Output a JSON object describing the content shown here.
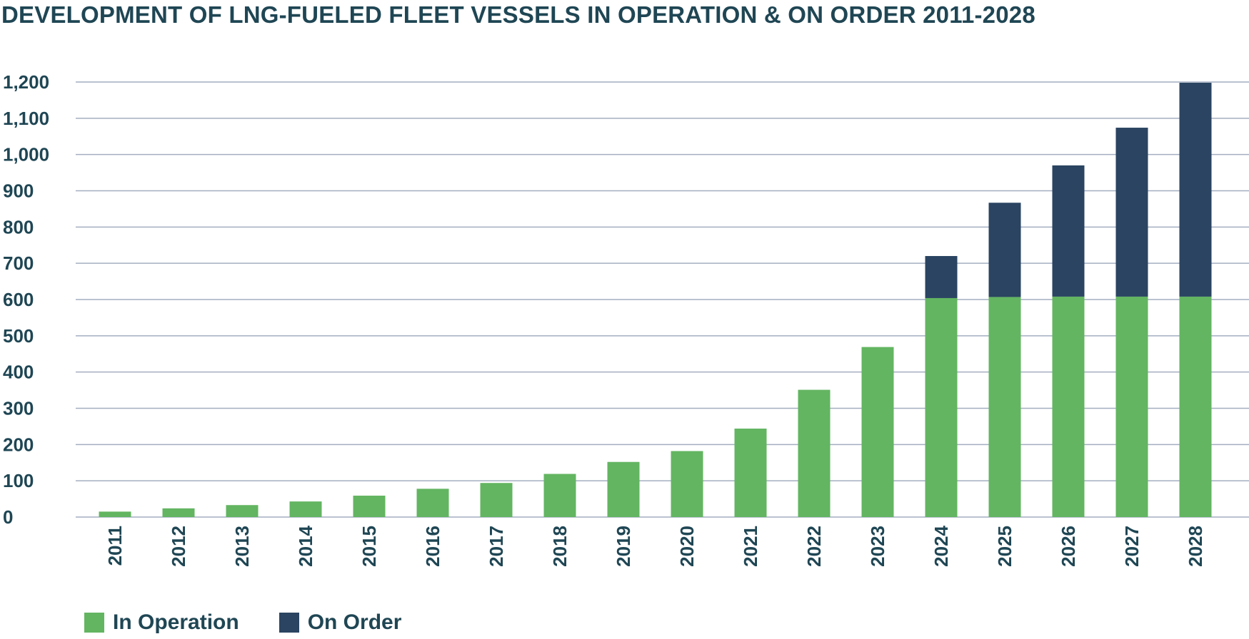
{
  "colors": {
    "in_operation": "#63b561",
    "on_order": "#2a4461",
    "grid": "#a4aec0",
    "text": "#1f4654"
  },
  "chart_data": {
    "type": "bar",
    "stacked": true,
    "title": "DEVELOPMENT OF LNG-FUELED FLEET VESSELS IN OPERATION & ON ORDER 2011-2028",
    "xlabel": "",
    "ylabel": "",
    "ylim": [
      0,
      1200
    ],
    "yticks": [
      0,
      100,
      200,
      300,
      400,
      500,
      600,
      700,
      800,
      900,
      1000,
      1100,
      1200
    ],
    "ytick_labels": [
      "0",
      "100",
      "200",
      "300",
      "400",
      "500",
      "600",
      "700",
      "800",
      "900",
      "1,000",
      "1,100",
      "1,200"
    ],
    "grid": true,
    "legend_position": "bottom-left",
    "categories": [
      "2011",
      "2012",
      "2013",
      "2014",
      "2015",
      "2016",
      "2017",
      "2018",
      "2019",
      "2020",
      "2021",
      "2022",
      "2023",
      "2024",
      "2025",
      "2026",
      "2027",
      "2028"
    ],
    "series": [
      {
        "name": "In Operation",
        "values": [
          15,
          24,
          33,
          43,
          59,
          78,
          94,
          119,
          152,
          182,
          244,
          351,
          469,
          604,
          607,
          608,
          608,
          608
        ]
      },
      {
        "name": "On Order",
        "values": [
          0,
          0,
          0,
          0,
          0,
          0,
          0,
          0,
          0,
          0,
          0,
          0,
          0,
          116,
          260,
          362,
          466,
          590
        ]
      }
    ]
  }
}
